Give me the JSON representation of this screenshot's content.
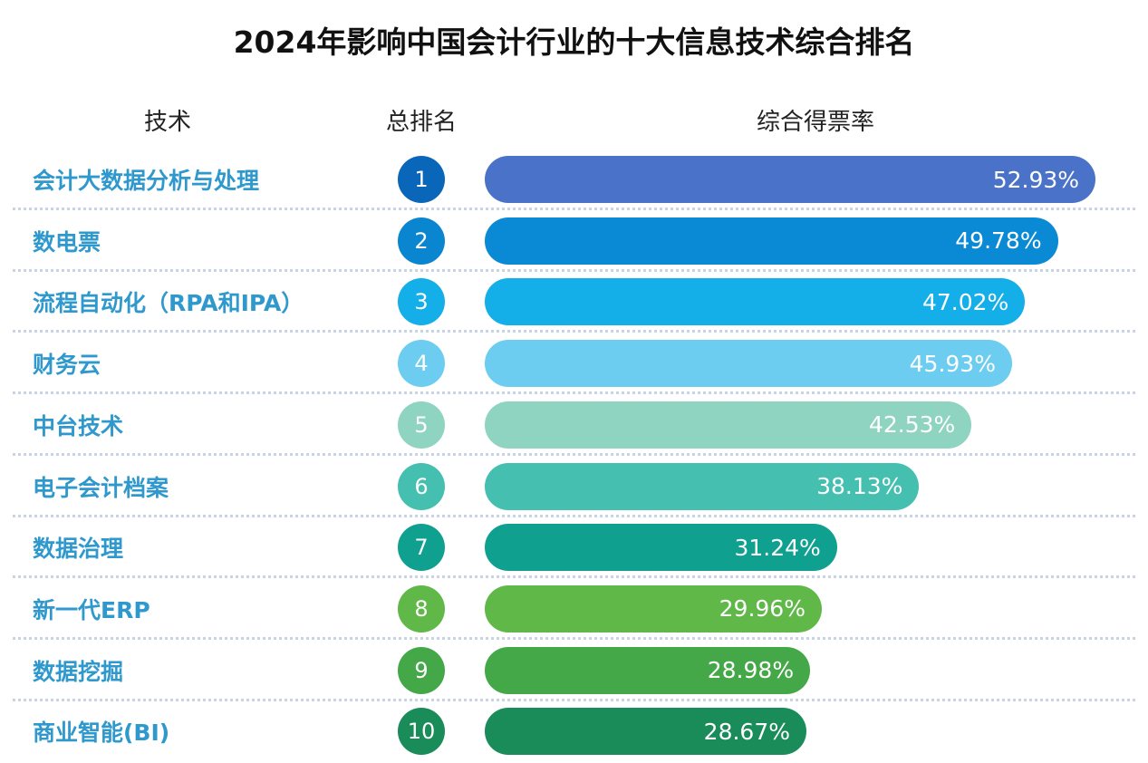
{
  "chart_data": {
    "type": "bar",
    "orientation": "horizontal",
    "title": "2024年影响中国会计行业的十大信息技术综合排名",
    "columns": [
      "技术",
      "总排名",
      "综合得票率"
    ],
    "categories": [
      "会计大数据分析与处理",
      "数电票",
      "流程自动化（RPA和IPA）",
      "财务云",
      "中台技术",
      "电子会计档案",
      "数据治理",
      "新一代ERP",
      "数据挖掘",
      "商业智能(BI)"
    ],
    "ranks": [
      "1",
      "2",
      "3",
      "4",
      "5",
      "6",
      "7",
      "8",
      "9",
      "10"
    ],
    "values": [
      52.93,
      49.78,
      47.02,
      45.93,
      42.53,
      38.13,
      31.24,
      29.96,
      28.98,
      28.67
    ],
    "value_labels": [
      "52.93%",
      "49.78%",
      "47.02%",
      "45.93%",
      "42.53%",
      "38.13%",
      "31.24%",
      "29.96%",
      "28.98%",
      "28.67%"
    ],
    "unit": "%",
    "bar_colors": [
      "#4a72c8",
      "#0a8ad4",
      "#14aee8",
      "#6ccdf0",
      "#8fd4c0",
      "#45bfb0",
      "#10a090",
      "#60b848",
      "#44a848",
      "#1a8c5a"
    ],
    "rank_colors": [
      "#0a66b8",
      "#0a86d0",
      "#14aee8",
      "#6ccdf0",
      "#8fd4c0",
      "#45bfb0",
      "#10a090",
      "#60b848",
      "#44a848",
      "#1a8c5a"
    ],
    "label_color": "#2f98cc",
    "grid": false
  }
}
